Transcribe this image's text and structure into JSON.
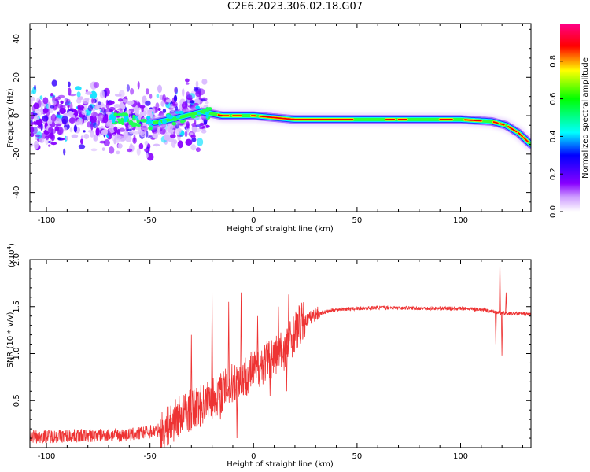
{
  "title": "C2E6.2023.306.02.18.G07",
  "chart_data": [
    {
      "type": "heatmap",
      "xlabel": "Height of straight line (km)",
      "ylabel": "Frequency (Hz)",
      "xlim": [
        -108,
        134
      ],
      "ylim": [
        -50,
        48
      ],
      "x_ticks": [
        -100,
        -50,
        0,
        50,
        100
      ],
      "y_ticks": [
        -40,
        -20,
        0,
        20,
        40
      ],
      "colorbar": {
        "label": "Normalized spectral amplitude",
        "range": [
          0,
          1
        ],
        "ticks": [
          "0.0",
          "0.2",
          "0.4",
          "0.6",
          "0.8"
        ],
        "colors": [
          "#ffffff",
          "#8800ff",
          "#0000ff",
          "#00ffff",
          "#00ff00",
          "#ffff00",
          "#ff0000",
          "#ff0088"
        ]
      },
      "ridge": [
        {
          "x": -108,
          "f": -2
        },
        {
          "x": -80,
          "f": 0
        },
        {
          "x": -50,
          "f": -4
        },
        {
          "x": -40,
          "f": -2
        },
        {
          "x": -25,
          "f": 2
        },
        {
          "x": -15,
          "f": 0
        },
        {
          "x": 0,
          "f": 0
        },
        {
          "x": 20,
          "f": -2
        },
        {
          "x": 60,
          "f": -2
        },
        {
          "x": 100,
          "f": -2
        },
        {
          "x": 115,
          "f": -3
        },
        {
          "x": 122,
          "f": -5
        },
        {
          "x": 128,
          "f": -9
        },
        {
          "x": 134,
          "f": -15
        }
      ]
    },
    {
      "type": "line",
      "xlabel": "Height of straight line (km)",
      "ylabel": "SNR (10 * v/v)",
      "scale_label": "(x10",
      "scale_exp": "4",
      "xlim": [
        -108,
        134
      ],
      "ylim": [
        0,
        20000
      ],
      "x_ticks": [
        -100,
        -50,
        0,
        50,
        100
      ],
      "y_ticks": [
        5000,
        10000,
        15000,
        20000
      ],
      "y_tick_labels": [
        "0.5",
        "1.0",
        "1.5",
        "2.0"
      ],
      "series": [
        {
          "color": "#ee3333",
          "trend": [
            {
              "x": -108,
              "y": 800
            },
            {
              "x": -60,
              "y": 1000
            },
            {
              "x": -45,
              "y": 1500
            },
            {
              "x": -35,
              "y": 3500
            },
            {
              "x": -25,
              "y": 4500
            },
            {
              "x": -15,
              "y": 6000
            },
            {
              "x": -5,
              "y": 7500
            },
            {
              "x": 5,
              "y": 9000
            },
            {
              "x": 15,
              "y": 10500
            },
            {
              "x": 22,
              "y": 13000
            },
            {
              "x": 30,
              "y": 14200
            },
            {
              "x": 40,
              "y": 14700
            },
            {
              "x": 60,
              "y": 14900
            },
            {
              "x": 90,
              "y": 14800
            },
            {
              "x": 100,
              "y": 14800
            },
            {
              "x": 110,
              "y": 14700
            },
            {
              "x": 115,
              "y": 14500
            },
            {
              "x": 120,
              "y": 14300
            },
            {
              "x": 134,
              "y": 14200
            }
          ],
          "spikes": [
            {
              "x": -30,
              "y": 12000
            },
            {
              "x": -28,
              "y": 2500
            },
            {
              "x": -20,
              "y": 16500
            },
            {
              "x": -16,
              "y": 3000
            },
            {
              "x": -12,
              "y": 15500
            },
            {
              "x": -8,
              "y": 1000
            },
            {
              "x": -6,
              "y": 16500
            },
            {
              "x": 2,
              "y": 14000
            },
            {
              "x": 8,
              "y": 5500
            },
            {
              "x": 12,
              "y": 15000
            },
            {
              "x": 16,
              "y": 6000
            },
            {
              "x": 17,
              "y": 16300
            },
            {
              "x": 117,
              "y": 11000
            },
            {
              "x": 119,
              "y": 20000
            },
            {
              "x": 120,
              "y": 9800
            },
            {
              "x": 122,
              "y": 16500
            }
          ]
        }
      ]
    }
  ]
}
